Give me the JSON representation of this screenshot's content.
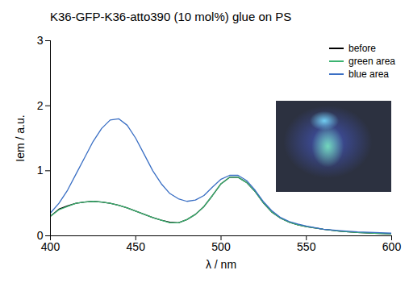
{
  "chart_data": {
    "type": "line",
    "title": "K36-GFP-K36-atto390 (10 mol%) glue on PS",
    "x_label": "λ / nm",
    "y_label": "Iem / a.u.",
    "x": [
      400,
      405,
      410,
      415,
      420,
      425,
      430,
      435,
      440,
      445,
      450,
      455,
      460,
      465,
      470,
      475,
      480,
      485,
      490,
      495,
      500,
      505,
      510,
      515,
      520,
      525,
      530,
      535,
      540,
      545,
      550,
      560,
      570,
      580,
      590,
      600
    ],
    "series": [
      {
        "name": "before",
        "color": "#000000",
        "values": [
          0.3,
          0.41,
          0.46,
          0.5,
          0.52,
          0.53,
          0.52,
          0.5,
          0.47,
          0.43,
          0.38,
          0.33,
          0.28,
          0.24,
          0.21,
          0.2,
          0.25,
          0.33,
          0.45,
          0.62,
          0.8,
          0.9,
          0.9,
          0.82,
          0.68,
          0.5,
          0.36,
          0.27,
          0.21,
          0.17,
          0.14,
          0.1,
          0.07,
          0.05,
          0.04,
          0.03
        ]
      },
      {
        "name": "green area",
        "color": "#3cb371",
        "values": [
          0.3,
          0.4,
          0.45,
          0.5,
          0.52,
          0.53,
          0.52,
          0.5,
          0.47,
          0.43,
          0.38,
          0.33,
          0.28,
          0.24,
          0.2,
          0.2,
          0.25,
          0.33,
          0.45,
          0.62,
          0.8,
          0.9,
          0.9,
          0.82,
          0.68,
          0.5,
          0.36,
          0.27,
          0.21,
          0.17,
          0.14,
          0.1,
          0.07,
          0.05,
          0.04,
          0.03
        ]
      },
      {
        "name": "blue area",
        "color": "#3a6fc4",
        "values": [
          0.35,
          0.5,
          0.7,
          0.95,
          1.2,
          1.45,
          1.65,
          1.78,
          1.8,
          1.7,
          1.5,
          1.25,
          1.0,
          0.8,
          0.65,
          0.57,
          0.53,
          0.55,
          0.62,
          0.75,
          0.87,
          0.93,
          0.93,
          0.85,
          0.7,
          0.52,
          0.38,
          0.28,
          0.22,
          0.18,
          0.15,
          0.1,
          0.08,
          0.06,
          0.05,
          0.04
        ]
      }
    ],
    "xlim": [
      400,
      600
    ],
    "xticks": [
      400,
      450,
      500,
      550,
      600
    ],
    "ylim": [
      0,
      3
    ],
    "yticks": [
      0,
      1,
      2,
      3
    ],
    "legend": "top-right",
    "grid": false
  }
}
